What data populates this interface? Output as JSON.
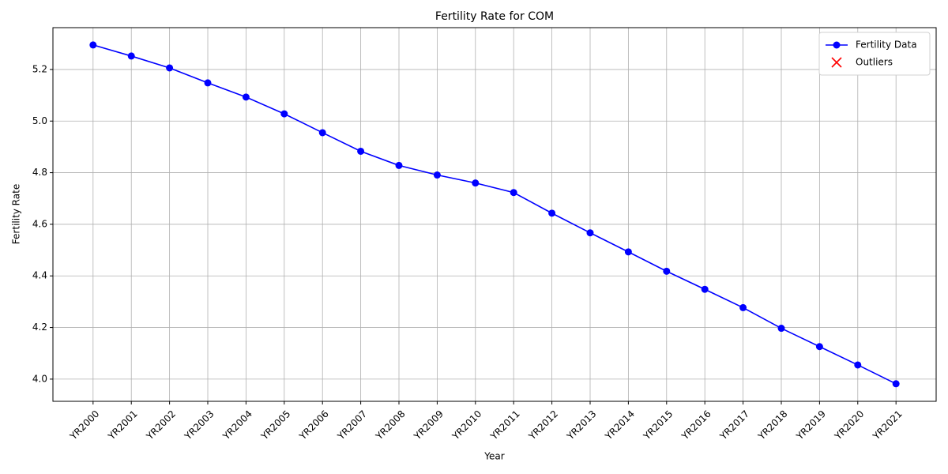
{
  "chart_data": {
    "type": "line",
    "title": "Fertility Rate for COM",
    "x_label": "Year",
    "y_label": "Fertility Rate",
    "categories": [
      "YR2000",
      "YR2001",
      "YR2002",
      "YR2003",
      "YR2004",
      "YR2005",
      "YR2006",
      "YR2007",
      "YR2008",
      "YR2009",
      "YR2010",
      "YR2011",
      "YR2012",
      "YR2013",
      "YR2014",
      "YR2015",
      "YR2016",
      "YR2017",
      "YR2018",
      "YR2019",
      "YR2020",
      "YR2021"
    ],
    "series": [
      {
        "name": "Fertility Data",
        "color": "#0000ff",
        "marker": "o",
        "values": [
          5.295,
          5.252,
          5.206,
          5.148,
          5.093,
          5.028,
          4.955,
          4.883,
          4.828,
          4.791,
          4.76,
          4.723,
          4.643,
          4.567,
          4.493,
          4.418,
          4.348,
          4.277,
          4.197,
          4.126,
          4.055,
          3.982
        ]
      },
      {
        "name": "Outliers",
        "color": "#ff0000",
        "marker": "x",
        "values": [
          null,
          null,
          null,
          null,
          null,
          null,
          null,
          null,
          null,
          null,
          null,
          null,
          null,
          null,
          null,
          null,
          null,
          null,
          null,
          null,
          null,
          null
        ]
      }
    ],
    "ylim": [
      3.914,
      5.362
    ],
    "yticks": [
      {
        "value": 4.0,
        "label": "4.0"
      },
      {
        "value": 4.2,
        "label": "4.2"
      },
      {
        "value": 4.4,
        "label": "4.4"
      },
      {
        "value": 4.6,
        "label": "4.6"
      },
      {
        "value": 4.8,
        "label": "4.8"
      },
      {
        "value": 5.0,
        "label": "5.0"
      },
      {
        "value": 5.2,
        "label": "5.2"
      }
    ],
    "grid": true,
    "legend": "upper right"
  }
}
